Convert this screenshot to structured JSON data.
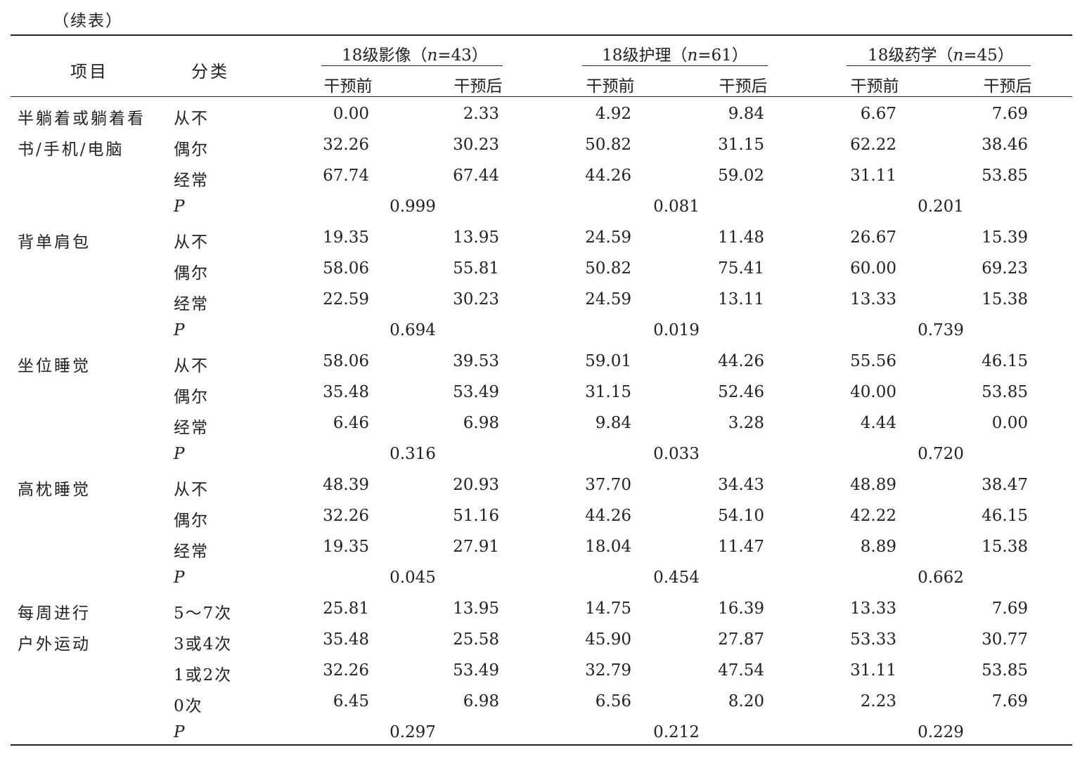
{
  "continuation": "（续表）",
  "header": {
    "item": "项目",
    "category": "分类",
    "groups": [
      {
        "prefix": "18级影像（",
        "n": "n",
        "suffix": "=43）"
      },
      {
        "prefix": "18级护理（",
        "n": "n",
        "suffix": "=61）"
      },
      {
        "prefix": "18级药学（",
        "n": "n",
        "suffix": "=45）"
      }
    ],
    "before": "干预前",
    "after": "干预后"
  },
  "rows": [
    {
      "item": "半躺着或躺着看",
      "cat": "从不",
      "v": [
        "0.00",
        "2.33",
        "4.92",
        "9.84",
        "6.67",
        "7.69"
      ]
    },
    {
      "item": "书/手机/电脑",
      "cat": "偶尔",
      "v": [
        "32.26",
        "30.23",
        "50.82",
        "31.15",
        "62.22",
        "38.46"
      ]
    },
    {
      "item": "",
      "cat": "经常",
      "v": [
        "67.74",
        "67.44",
        "44.26",
        "59.02",
        "31.11",
        "53.85"
      ]
    },
    {
      "item": "",
      "cat": "P",
      "p": [
        "0.999",
        "0.081",
        "0.201"
      ]
    },
    {
      "item": "背单肩包",
      "cat": "从不",
      "v": [
        "19.35",
        "13.95",
        "24.59",
        "11.48",
        "26.67",
        "15.39"
      ]
    },
    {
      "item": "",
      "cat": "偶尔",
      "v": [
        "58.06",
        "55.81",
        "50.82",
        "75.41",
        "60.00",
        "69.23"
      ]
    },
    {
      "item": "",
      "cat": "经常",
      "v": [
        "22.59",
        "30.23",
        "24.59",
        "13.11",
        "13.33",
        "15.38"
      ]
    },
    {
      "item": "",
      "cat": "P",
      "p": [
        "0.694",
        "0.019",
        "0.739"
      ]
    },
    {
      "item": "坐位睡觉",
      "cat": "从不",
      "v": [
        "58.06",
        "39.53",
        "59.01",
        "44.26",
        "55.56",
        "46.15"
      ]
    },
    {
      "item": "",
      "cat": "偶尔",
      "v": [
        "35.48",
        "53.49",
        "31.15",
        "52.46",
        "40.00",
        "53.85"
      ]
    },
    {
      "item": "",
      "cat": "经常",
      "v": [
        "6.46",
        "6.98",
        "9.84",
        "3.28",
        "4.44",
        "0.00"
      ]
    },
    {
      "item": "",
      "cat": "P",
      "p": [
        "0.316",
        "0.033",
        "0.720"
      ]
    },
    {
      "item": "高枕睡觉",
      "cat": "从不",
      "v": [
        "48.39",
        "20.93",
        "37.70",
        "34.43",
        "48.89",
        "38.47"
      ]
    },
    {
      "item": "",
      "cat": "偶尔",
      "v": [
        "32.26",
        "51.16",
        "44.26",
        "54.10",
        "42.22",
        "46.15"
      ]
    },
    {
      "item": "",
      "cat": "经常",
      "v": [
        "19.35",
        "27.91",
        "18.04",
        "11.47",
        "8.89",
        "15.38"
      ]
    },
    {
      "item": "",
      "cat": "P",
      "p": [
        "0.045",
        "0.454",
        "0.662"
      ]
    },
    {
      "item": "每周进行",
      "cat": "5～7次",
      "v": [
        "25.81",
        "13.95",
        "14.75",
        "16.39",
        "13.33",
        "7.69"
      ]
    },
    {
      "item": "户外运动",
      "cat": "3或4次",
      "v": [
        "35.48",
        "25.58",
        "45.90",
        "27.87",
        "53.33",
        "30.77"
      ]
    },
    {
      "item": "",
      "cat": "1或2次",
      "v": [
        "32.26",
        "53.49",
        "32.79",
        "47.54",
        "31.11",
        "53.85"
      ]
    },
    {
      "item": "",
      "cat": "0次",
      "v": [
        "6.45",
        "6.98",
        "6.56",
        "8.20",
        "2.23",
        "7.69"
      ]
    },
    {
      "item": "",
      "cat": "P",
      "p": [
        "0.297",
        "0.212",
        "0.229"
      ]
    }
  ]
}
